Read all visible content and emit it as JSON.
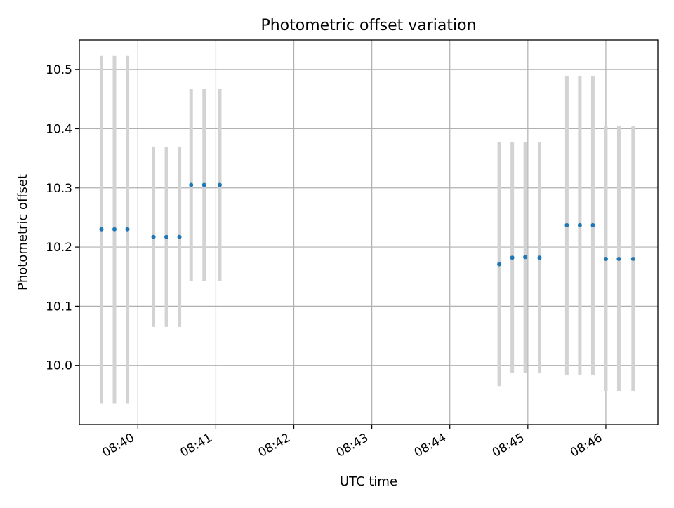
{
  "chart_data": {
    "type": "scatter",
    "title": "Photometric offset variation",
    "xlabel": "UTC time",
    "ylabel": "Photometric offset",
    "x_format": "HH:MM",
    "xlim": [
      "08:39:15",
      "08:46:40"
    ],
    "ylim": [
      9.9,
      10.55
    ],
    "grid": true,
    "x_ticks": [
      "08:40",
      "08:41",
      "08:42",
      "08:43",
      "08:44",
      "08:45",
      "08:46"
    ],
    "y_ticks": [
      "10.0",
      "10.1",
      "10.2",
      "10.3",
      "10.4",
      "10.5"
    ],
    "colors": {
      "marker": "#1f77b4",
      "errorbar": "#d3d3d3"
    },
    "series": [
      {
        "points": [
          {
            "x": "08:39:32",
            "y": 10.23,
            "ymin": 9.935,
            "ymax": 10.523
          },
          {
            "x": "08:39:42",
            "y": 10.23,
            "ymin": 9.935,
            "ymax": 10.523
          },
          {
            "x": "08:39:52",
            "y": 10.23,
            "ymin": 9.935,
            "ymax": 10.523
          },
          {
            "x": "08:40:12",
            "y": 10.217,
            "ymin": 10.065,
            "ymax": 10.369
          },
          {
            "x": "08:40:22",
            "y": 10.217,
            "ymin": 10.065,
            "ymax": 10.369
          },
          {
            "x": "08:40:32",
            "y": 10.217,
            "ymin": 10.065,
            "ymax": 10.369
          },
          {
            "x": "08:40:41",
            "y": 10.305,
            "ymin": 10.143,
            "ymax": 10.467
          },
          {
            "x": "08:40:51",
            "y": 10.305,
            "ymin": 10.143,
            "ymax": 10.467
          },
          {
            "x": "08:41:03",
            "y": 10.305,
            "ymin": 10.143,
            "ymax": 10.467
          },
          {
            "x": "08:44:38",
            "y": 10.171,
            "ymin": 9.965,
            "ymax": 10.377
          },
          {
            "x": "08:44:48",
            "y": 10.182,
            "ymin": 9.987,
            "ymax": 10.377
          },
          {
            "x": "08:44:58",
            "y": 10.183,
            "ymin": 9.987,
            "ymax": 10.377
          },
          {
            "x": "08:45:09",
            "y": 10.182,
            "ymin": 9.987,
            "ymax": 10.377
          },
          {
            "x": "08:45:30",
            "y": 10.237,
            "ymin": 9.983,
            "ymax": 10.489
          },
          {
            "x": "08:45:40",
            "y": 10.237,
            "ymin": 9.983,
            "ymax": 10.489
          },
          {
            "x": "08:45:50",
            "y": 10.237,
            "ymin": 9.983,
            "ymax": 10.489
          },
          {
            "x": "08:46:00",
            "y": 10.18,
            "ymin": 9.957,
            "ymax": 10.404
          },
          {
            "x": "08:46:10",
            "y": 10.18,
            "ymin": 9.957,
            "ymax": 10.404
          },
          {
            "x": "08:46:21",
            "y": 10.18,
            "ymin": 9.957,
            "ymax": 10.404
          }
        ]
      }
    ]
  }
}
